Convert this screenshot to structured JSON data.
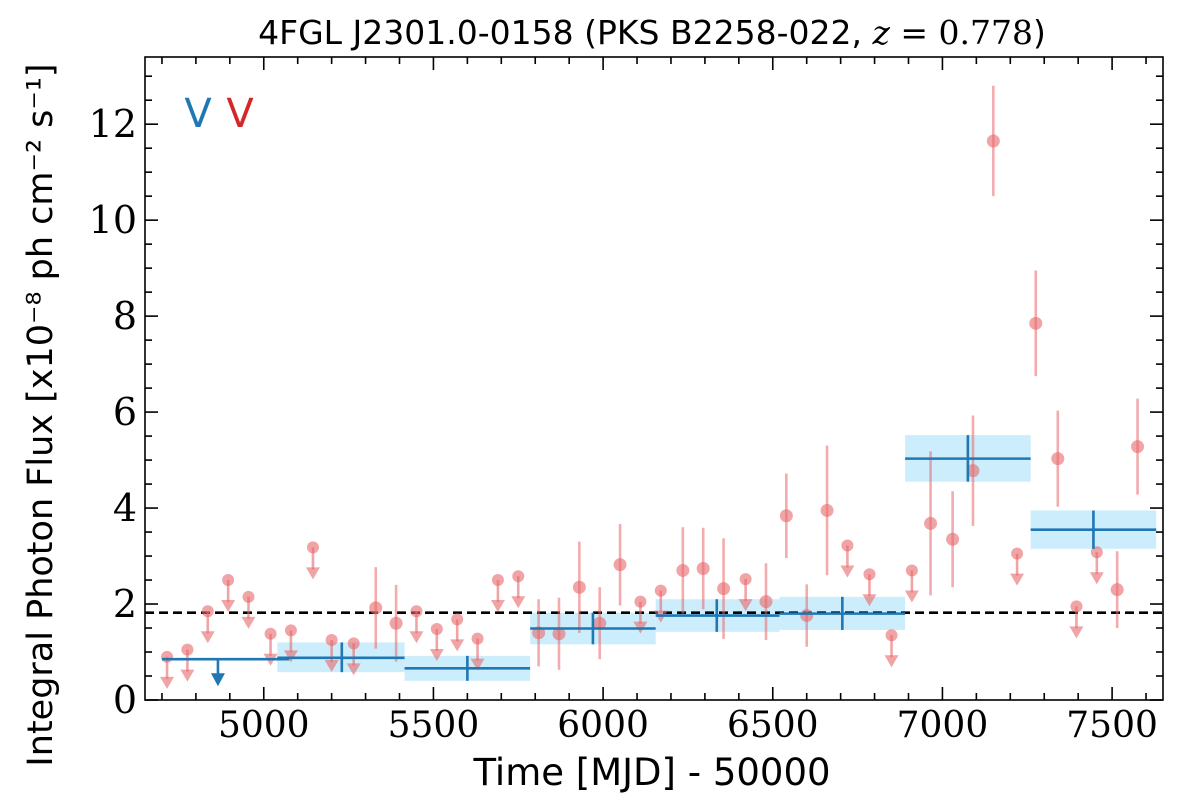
{
  "chart_data": {
    "type": "scatter",
    "title": "4FGL J2301.0-0158 (PKS B2258-022, z = 0.778)",
    "xlabel": "Time [MJD] - 50000",
    "ylabel": "Integral Photon Flux [x10⁻⁸ ph cm⁻² s⁻¹]",
    "xlim": [
      4650,
      7650
    ],
    "ylim": [
      0,
      13.4
    ],
    "xticks": [
      5000,
      5500,
      6000,
      6500,
      7000,
      7500
    ],
    "yticks": [
      0,
      2,
      4,
      6,
      8,
      10,
      12
    ],
    "xtick_labels": [
      "5000",
      "5500",
      "6000",
      "6500",
      "7000",
      "7500"
    ],
    "ytick_labels": [
      "0",
      "2",
      "4",
      "6",
      "8",
      "10",
      "12"
    ],
    "legend": {
      "placement": "top-left",
      "entries": [
        {
          "label": "V",
          "color": "#1f77b4"
        },
        {
          "label": "V",
          "color": "#d62728"
        }
      ]
    },
    "reference_line": {
      "y": 1.82,
      "style": "dashed",
      "color": "#000000"
    },
    "series": [
      {
        "kind": "long-bins",
        "color": "#1f77b4",
        "band_color": "#c9ecfb",
        "bins": [
          {
            "x_lo": 4700,
            "x_hi": 5075,
            "y": 0.85,
            "upper_limit": true,
            "arrow_x": 4865
          },
          {
            "x_lo": 5040,
            "x_hi": 5415,
            "y": 0.88,
            "y_lo": 0.58,
            "y_hi": 1.2,
            "x_c": 5230
          },
          {
            "x_lo": 5415,
            "x_hi": 5785,
            "y": 0.66,
            "y_lo": 0.4,
            "y_hi": 0.92,
            "x_c": 5600
          },
          {
            "x_lo": 5785,
            "x_hi": 6155,
            "y": 1.49,
            "y_lo": 1.16,
            "y_hi": 1.82,
            "x_c": 5970
          },
          {
            "x_lo": 6155,
            "x_hi": 6520,
            "y": 1.76,
            "y_lo": 1.42,
            "y_hi": 2.1,
            "x_c": 6335
          },
          {
            "x_lo": 6520,
            "x_hi": 6890,
            "y": 1.8,
            "y_lo": 1.46,
            "y_hi": 2.15,
            "x_c": 6705
          },
          {
            "x_lo": 6890,
            "x_hi": 7260,
            "y": 5.03,
            "y_lo": 4.55,
            "y_hi": 5.52,
            "x_c": 7075
          },
          {
            "x_lo": 7260,
            "x_hi": 7630,
            "y": 3.55,
            "y_lo": 3.15,
            "y_hi": 3.95,
            "x_c": 7445
          }
        ]
      },
      {
        "kind": "short-bins",
        "color": "#e8676b",
        "detections": [
          {
            "x": 5330,
            "y": 1.92,
            "err": 0.85
          },
          {
            "x": 5390,
            "y": 1.6,
            "err": 0.8
          },
          {
            "x": 5810,
            "y": 1.4,
            "err": 0.7
          },
          {
            "x": 5870,
            "y": 1.38,
            "err": 0.75
          },
          {
            "x": 5930,
            "y": 2.35,
            "err": 0.95
          },
          {
            "x": 5990,
            "y": 1.6,
            "err": 0.75
          },
          {
            "x": 6050,
            "y": 2.82,
            "err": 0.85
          },
          {
            "x": 6235,
            "y": 2.7,
            "err": 0.9
          },
          {
            "x": 6295,
            "y": 2.74,
            "err": 0.85
          },
          {
            "x": 6355,
            "y": 2.32,
            "err": 1.05
          },
          {
            "x": 6480,
            "y": 2.05,
            "err": 0.8
          },
          {
            "x": 6540,
            "y": 3.84,
            "err": 0.88
          },
          {
            "x": 6600,
            "y": 1.76,
            "err": 0.65
          },
          {
            "x": 6660,
            "y": 3.95,
            "err": 1.35
          },
          {
            "x": 6965,
            "y": 3.68,
            "err": 1.5
          },
          {
            "x": 7030,
            "y": 3.35,
            "err": 1.0
          },
          {
            "x": 7090,
            "y": 4.78,
            "err": 1.15
          },
          {
            "x": 7150,
            "y": 11.65,
            "err": 1.15
          },
          {
            "x": 7275,
            "y": 7.85,
            "err": 1.1
          },
          {
            "x": 7340,
            "y": 5.03,
            "err": 1.0
          },
          {
            "x": 7515,
            "y": 2.3,
            "err": 0.8
          },
          {
            "x": 7575,
            "y": 5.28,
            "err": 1.0
          }
        ],
        "upper_limits": [
          {
            "x": 4715,
            "y": 0.9
          },
          {
            "x": 4775,
            "y": 1.05
          },
          {
            "x": 4835,
            "y": 1.85
          },
          {
            "x": 4895,
            "y": 2.5
          },
          {
            "x": 4955,
            "y": 2.15
          },
          {
            "x": 5020,
            "y": 1.38
          },
          {
            "x": 5080,
            "y": 1.45
          },
          {
            "x": 5145,
            "y": 3.18
          },
          {
            "x": 5200,
            "y": 1.25
          },
          {
            "x": 5265,
            "y": 1.18
          },
          {
            "x": 5450,
            "y": 1.85
          },
          {
            "x": 5510,
            "y": 1.48
          },
          {
            "x": 5570,
            "y": 1.68
          },
          {
            "x": 5630,
            "y": 1.28
          },
          {
            "x": 5690,
            "y": 2.5
          },
          {
            "x": 5750,
            "y": 2.58
          },
          {
            "x": 6110,
            "y": 2.05
          },
          {
            "x": 6170,
            "y": 2.28
          },
          {
            "x": 6420,
            "y": 2.52
          },
          {
            "x": 6720,
            "y": 3.22
          },
          {
            "x": 6785,
            "y": 2.62
          },
          {
            "x": 6850,
            "y": 1.35
          },
          {
            "x": 6910,
            "y": 2.7
          },
          {
            "x": 7220,
            "y": 3.05
          },
          {
            "x": 7395,
            "y": 1.95
          },
          {
            "x": 7455,
            "y": 3.08
          }
        ]
      }
    ]
  }
}
